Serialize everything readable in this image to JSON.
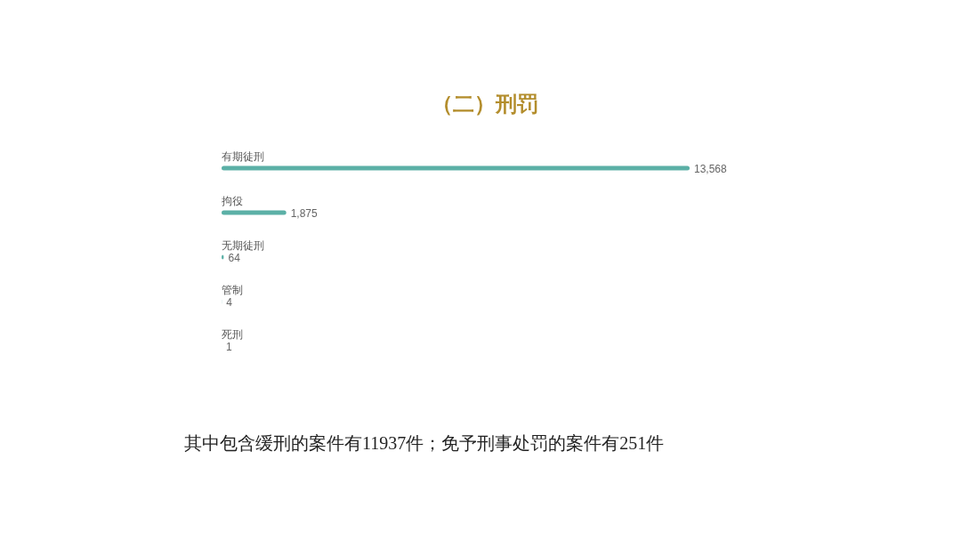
{
  "chart_data": {
    "type": "bar",
    "orientation": "horizontal",
    "title": "（二）刑罚",
    "categories": [
      "有期徒刑",
      "拘役",
      "无期徒刑",
      "管制",
      "死刑"
    ],
    "values": [
      13568,
      1875,
      64,
      4,
      1
    ],
    "value_labels": [
      "13,568",
      "1,875",
      "64",
      "4",
      "1"
    ],
    "color": "#5bb0a6",
    "annotations": [
      "其中包含缓刑的案件有11937件；免予刑事处罚的案件有251件"
    ]
  }
}
